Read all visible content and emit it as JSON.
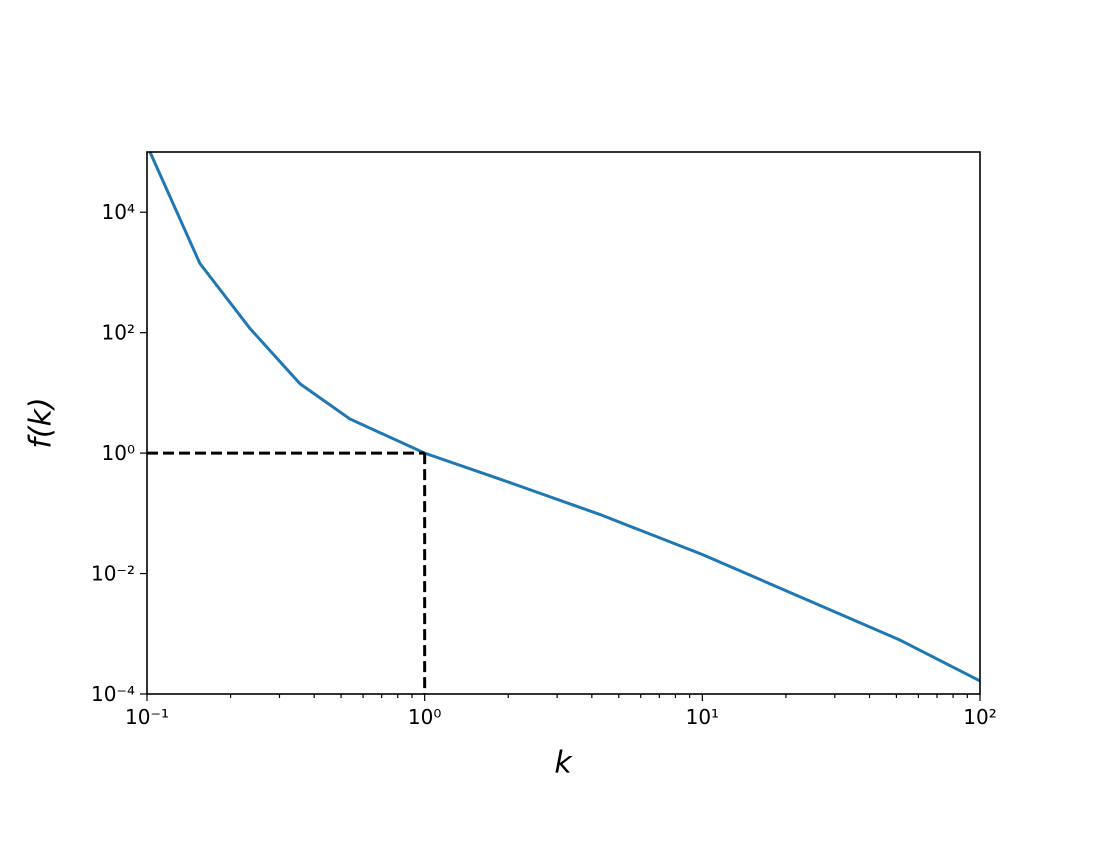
{
  "chart_data": {
    "type": "line",
    "x_label": "k",
    "y_label": "f(k)",
    "x": [
      0.1025,
      0.155,
      0.235,
      0.356,
      0.538,
      1,
      1.87,
      4.27,
      10,
      22.4,
      51.4,
      100
    ],
    "values": [
      100000,
      1413,
      117,
      14.1,
      3.69,
      1,
      0.369,
      0.096,
      0.0207,
      0.00414,
      0.00079,
      0.000165
    ],
    "color": "#1f77b4",
    "x_log": true,
    "y_log": true,
    "xlim": [
      0.1,
      100
    ],
    "ylim": [
      0.0001,
      100000
    ],
    "xticks": [
      {
        "value": 0.1,
        "label": "10⁻¹"
      },
      {
        "value": 1,
        "label": "10⁰"
      },
      {
        "value": 10,
        "label": "10¹"
      },
      {
        "value": 100,
        "label": "10²"
      }
    ],
    "xminorticks": [
      0.2,
      0.3,
      0.4,
      0.5,
      0.6,
      0.7,
      0.8,
      0.9,
      2,
      3,
      4,
      5,
      6,
      7,
      8,
      9,
      20,
      30,
      40,
      50,
      60,
      70,
      80,
      90
    ],
    "yticks": [
      {
        "value": 0.0001,
        "label": "10⁻⁴"
      },
      {
        "value": 0.01,
        "label": "10⁻²"
      },
      {
        "value": 1,
        "label": "10⁰"
      },
      {
        "value": 100,
        "label": "10²"
      },
      {
        "value": 10000,
        "label": "10⁴"
      }
    ],
    "reference": {
      "x": 1,
      "y": 1
    }
  }
}
